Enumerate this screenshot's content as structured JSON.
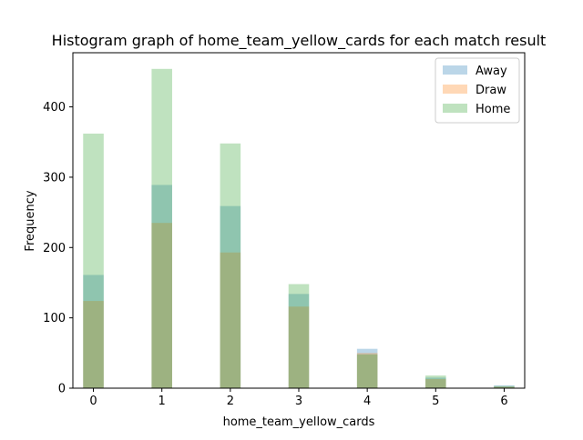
{
  "chart_data": {
    "type": "bar",
    "title": "Histogram graph of home_team_yellow_cards for each match result",
    "xlabel": "home_team_yellow_cards",
    "ylabel": "Frequency",
    "xlim": [
      -0.3,
      6.3
    ],
    "ylim": [
      0,
      477
    ],
    "bin_width": 0.3,
    "x_ticks": [
      0,
      1,
      2,
      3,
      4,
      5,
      6
    ],
    "y_ticks": [
      0,
      100,
      200,
      300,
      400
    ],
    "x": [
      0,
      1,
      2,
      3,
      4,
      5,
      6
    ],
    "series": [
      {
        "name": "Away",
        "color": "#1f77b4",
        "values": [
          161,
          289,
          259,
          134,
          56,
          15,
          4
        ]
      },
      {
        "name": "Draw",
        "color": "#ff7f0e",
        "values": [
          124,
          235,
          193,
          116,
          50,
          13,
          2
        ]
      },
      {
        "name": "Home",
        "color": "#2ca02c",
        "values": [
          362,
          454,
          348,
          148,
          48,
          18,
          3
        ]
      }
    ],
    "opacity": 0.3,
    "legend_position": "top-right",
    "grid": false
  }
}
